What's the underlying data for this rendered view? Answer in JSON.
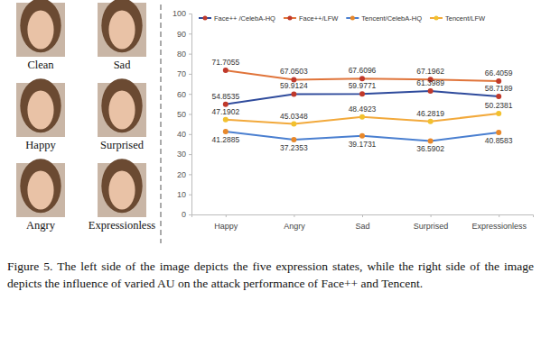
{
  "figure": {
    "panels": [
      "Clean",
      "Sad",
      "Happy",
      "Surprised",
      "Angry",
      "Expressionless"
    ]
  },
  "chart_data": {
    "type": "line",
    "categories": [
      "Happy",
      "Angry",
      "Sad",
      "Surprised",
      "Expressionless"
    ],
    "series": [
      {
        "name": "Face++ /CelebA-HQ",
        "color": "#2f4b9c",
        "marker": "circle",
        "values": [
          54.8535,
          59.9124,
          59.9771,
          61.3989,
          58.7189
        ]
      },
      {
        "name": "Face++/LFW",
        "color": "#e0743a",
        "marker": "circle",
        "values": [
          71.7055,
          67.0503,
          67.6096,
          67.1962,
          66.4059
        ]
      },
      {
        "name": "Tencent/CelebA-HQ",
        "color": "#4a7fd0",
        "marker": "circle",
        "values": [
          41.2885,
          37.2353,
          39.1731,
          36.5902,
          40.8583
        ]
      },
      {
        "name": "Tencent/LFW",
        "color": "#f2a93b",
        "marker": "circle",
        "values": [
          47.1902,
          45.0348,
          48.4923,
          46.2819,
          50.2381
        ]
      }
    ],
    "ylim": [
      0,
      100
    ],
    "yticks": [
      0,
      10,
      20,
      30,
      40,
      50,
      60,
      70,
      80,
      90,
      100
    ],
    "grid": false,
    "legend": "top",
    "data_labels": true
  },
  "caption": "Figure 5.  The left side of the image depicts the five expression states, while the right side of the image depicts the influence of varied AU on the attack performance of Face++ and Tencent."
}
